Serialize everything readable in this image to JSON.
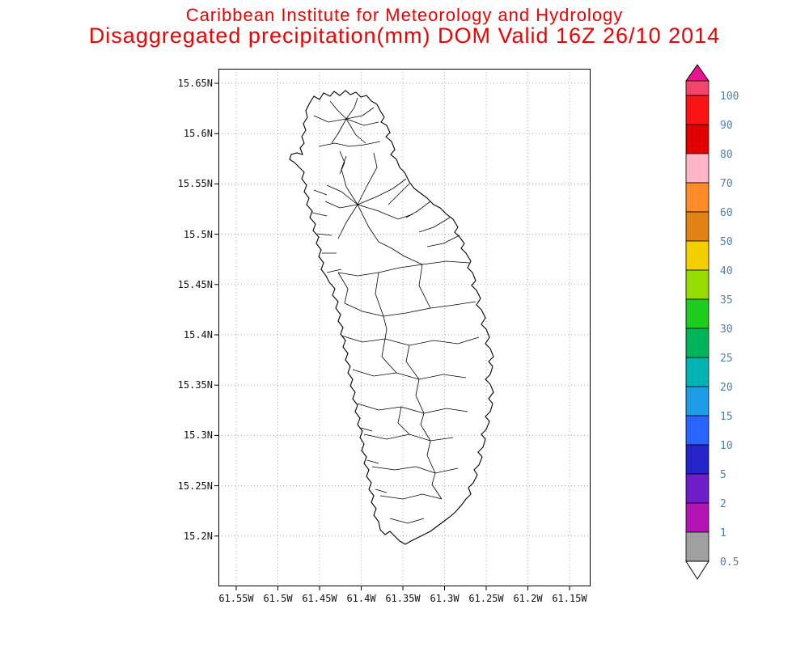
{
  "header": {
    "line1": "Caribbean Institute for Meteorology and Hydrology",
    "line2": "Disaggregated precipitation(mm) DOM Valid 16Z 26/10 2014",
    "title_color": "#f10000"
  },
  "axes": {
    "lat_labels": [
      "15.65N",
      "15.6N",
      "15.55N",
      "15.5N",
      "15.45N",
      "15.4N",
      "15.35N",
      "15.3N",
      "15.25N",
      "15.2N"
    ],
    "lon_labels": [
      "61.55W",
      "61.5W",
      "61.45W",
      "61.4W",
      "61.35W",
      "61.3W",
      "61.25W",
      "61.2W",
      "61.15W"
    ]
  },
  "colorbar": {
    "labels": [
      "100",
      "90",
      "80",
      "70",
      "60",
      "50",
      "40",
      "35",
      "30",
      "25",
      "20",
      "15",
      "10",
      "5",
      "2",
      "1",
      "0.5"
    ],
    "segment_colors": [
      "#f2476a",
      "#fb1414",
      "#e00000",
      "#ffb4c8",
      "#ff8c28",
      "#e08214",
      "#f2d000",
      "#96dc00",
      "#1ecc1e",
      "#00b45a",
      "#00b4b4",
      "#1e9ce6",
      "#2864ff",
      "#2424c8",
      "#6e1ec8",
      "#b414b4",
      "#a0a0a0"
    ],
    "top_arrow_color": "#ea1390",
    "bottom_arrow_color": "#ffffff",
    "label_color": "#4b7fb3"
  }
}
